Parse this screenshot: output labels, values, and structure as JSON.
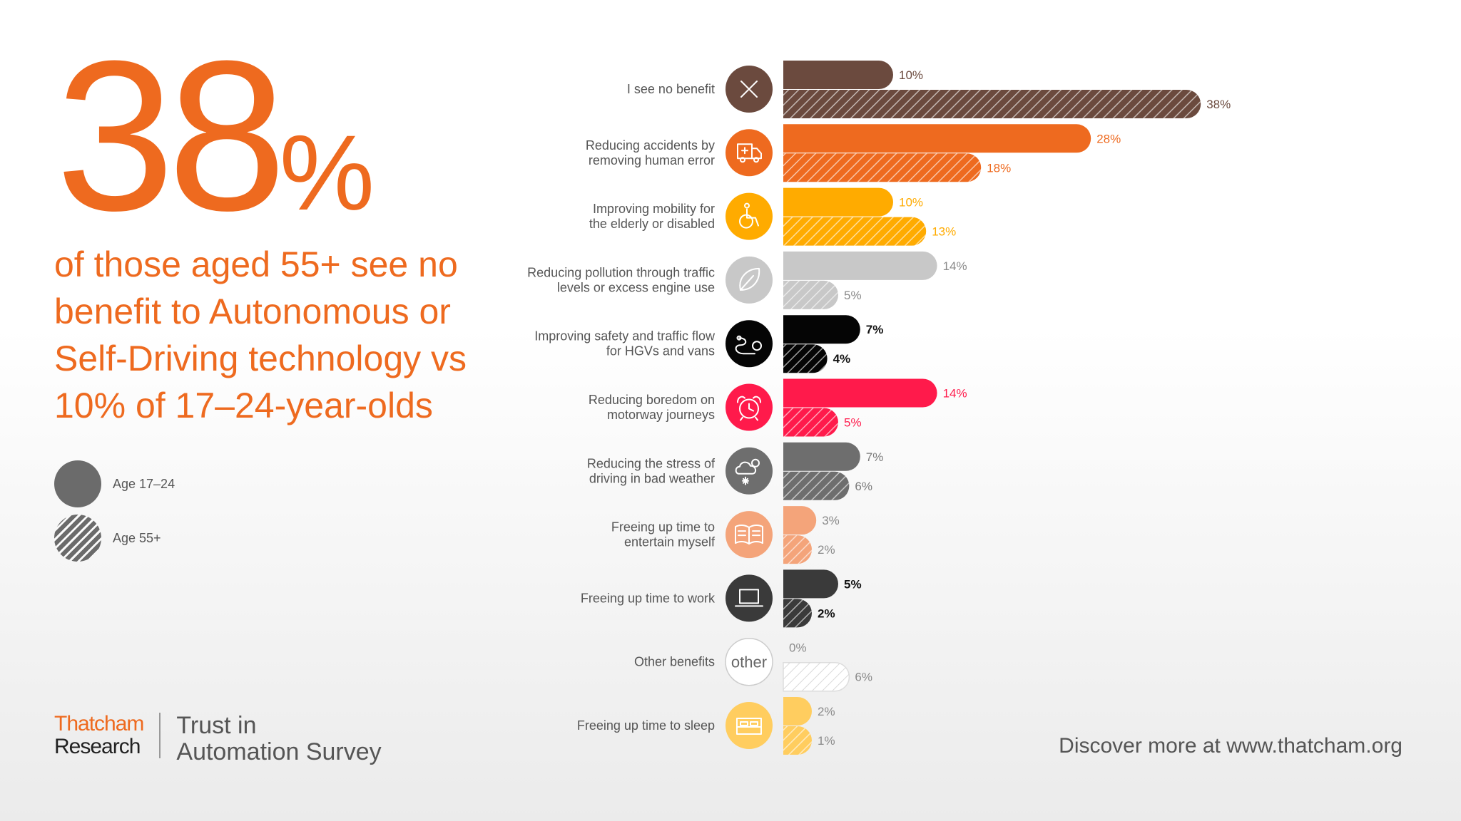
{
  "headline": {
    "number": "38",
    "percent": "%"
  },
  "subtitle": "of those aged 55+ see no benefit to Autonomous or Self-Driving technology vs 10% of 17–24-year-olds",
  "legend": [
    {
      "label": "Age 17–24",
      "style": "solid"
    },
    {
      "label": "Age 55+",
      "style": "hatched"
    }
  ],
  "brand": {
    "logo_line1": "Thatcham",
    "logo_line2": "Research",
    "survey_line1": "Trust in",
    "survey_line2": "Automation Survey"
  },
  "footer": "Discover more at www.thatcham.org",
  "chart_data": {
    "type": "bar",
    "orientation": "horizontal",
    "series": [
      {
        "name": "Age 17–24",
        "style": "solid",
        "values": [
          10,
          28,
          10,
          14,
          7,
          14,
          7,
          3,
          5,
          0,
          2
        ]
      },
      {
        "name": "Age 55+",
        "style": "hatched",
        "values": [
          38,
          18,
          13,
          5,
          4,
          5,
          6,
          2,
          2,
          6,
          1
        ]
      }
    ],
    "categories": [
      {
        "label": [
          "I see no benefit"
        ],
        "icon": "cross-icon",
        "color": "#6b4a3e",
        "value_color": "#6b4a3e"
      },
      {
        "label": [
          "Reducing accidents by",
          "removing human error"
        ],
        "icon": "ambulance-icon",
        "color": "#ee6a1f",
        "value_color": "#ee6a1f"
      },
      {
        "label": [
          "Improving mobility for",
          "the elderly or disabled"
        ],
        "icon": "wheelchair-icon",
        "color": "#ffab00",
        "value_color": "#ffab00"
      },
      {
        "label": [
          "Reducing pollution through traffic",
          "levels or excess engine use"
        ],
        "icon": "leaf-icon",
        "color": "#c8c8c8",
        "value_color": "#8a8a8a"
      },
      {
        "label": [
          "Improving safety and traffic flow",
          "for HGVs and vans"
        ],
        "icon": "route-icon",
        "color": "#050505",
        "value_color": "#111111"
      },
      {
        "label": [
          "Reducing boredom on",
          "motorway journeys"
        ],
        "icon": "alarm-clock-icon",
        "color": "#ff1a4b",
        "value_color": "#ff1a4b"
      },
      {
        "label": [
          "Reducing the stress of",
          "driving in bad weather"
        ],
        "icon": "weather-icon",
        "color": "#6e6e6e",
        "value_color": "#7a7a7a"
      },
      {
        "label": [
          "Freeing up time to",
          "entertain myself"
        ],
        "icon": "book-icon",
        "color": "#f4a47a",
        "value_color": "#8a8a8a"
      },
      {
        "label": [
          "Freeing up time to work"
        ],
        "icon": "laptop-icon",
        "color": "#3a3a3a",
        "value_color": "#111111"
      },
      {
        "label": [
          "Other benefits"
        ],
        "icon": "other-icon",
        "icon_text": "other",
        "color": "#eeeeee",
        "value_color": "#8a8a8a"
      },
      {
        "label": [
          "Freeing up time to sleep"
        ],
        "icon": "bed-icon",
        "color": "#ffcd5f",
        "value_color": "#8a8a8a"
      }
    ],
    "value_suffix": "%",
    "xlim": [
      0,
      38
    ]
  }
}
